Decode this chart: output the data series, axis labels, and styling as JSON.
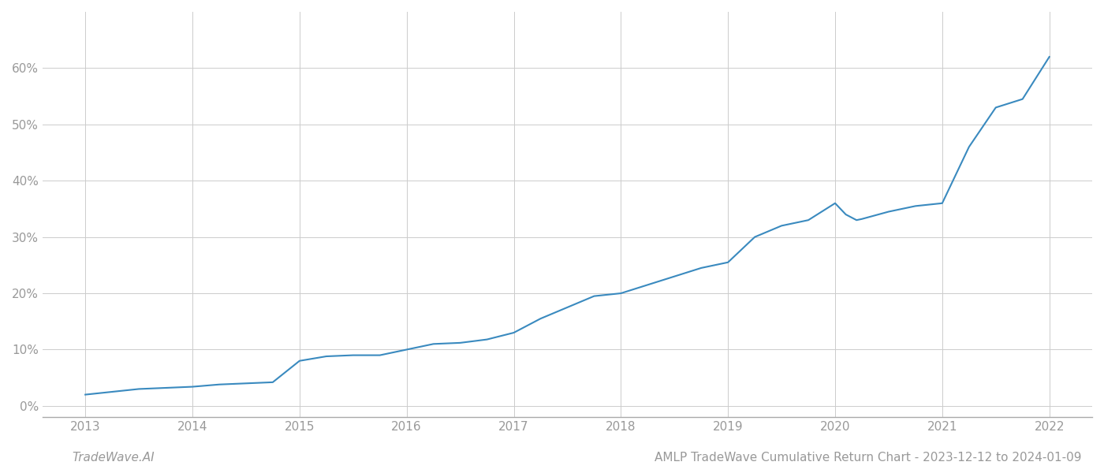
{
  "title": "AMLP TradeWave Cumulative Return Chart - 2023-12-12 to 2024-01-09",
  "watermark": "TradeWave.AI",
  "line_color": "#3a8abf",
  "background_color": "#ffffff",
  "grid_color": "#cccccc",
  "x_years": [
    2013,
    2014,
    2015,
    2016,
    2017,
    2018,
    2019,
    2020,
    2021,
    2022
  ],
  "x_data": [
    2013.0,
    2013.25,
    2013.5,
    2013.75,
    2014.0,
    2014.25,
    2014.5,
    2014.75,
    2015.0,
    2015.25,
    2015.5,
    2015.75,
    2016.0,
    2016.25,
    2016.5,
    2016.75,
    2017.0,
    2017.25,
    2017.5,
    2017.75,
    2018.0,
    2018.25,
    2018.5,
    2018.75,
    2019.0,
    2019.25,
    2019.5,
    2019.75,
    2020.0,
    2020.1,
    2020.2,
    2020.25,
    2020.5,
    2020.75,
    2021.0,
    2021.1,
    2021.25,
    2021.5,
    2021.75,
    2022.0
  ],
  "y_data": [
    0.02,
    0.025,
    0.03,
    0.032,
    0.034,
    0.038,
    0.04,
    0.042,
    0.08,
    0.088,
    0.09,
    0.09,
    0.1,
    0.11,
    0.112,
    0.118,
    0.13,
    0.155,
    0.175,
    0.195,
    0.2,
    0.215,
    0.23,
    0.245,
    0.255,
    0.3,
    0.32,
    0.33,
    0.36,
    0.34,
    0.33,
    0.332,
    0.345,
    0.355,
    0.36,
    0.4,
    0.46,
    0.53,
    0.545,
    0.62
  ],
  "ylim": [
    -0.02,
    0.7
  ],
  "yticks": [
    0.0,
    0.1,
    0.2,
    0.3,
    0.4,
    0.5,
    0.6
  ],
  "xlim": [
    2012.6,
    2022.4
  ],
  "line_width": 1.5,
  "title_fontsize": 11,
  "watermark_fontsize": 11,
  "tick_fontsize": 11,
  "tick_color": "#999999",
  "spine_color": "#aaaaaa"
}
